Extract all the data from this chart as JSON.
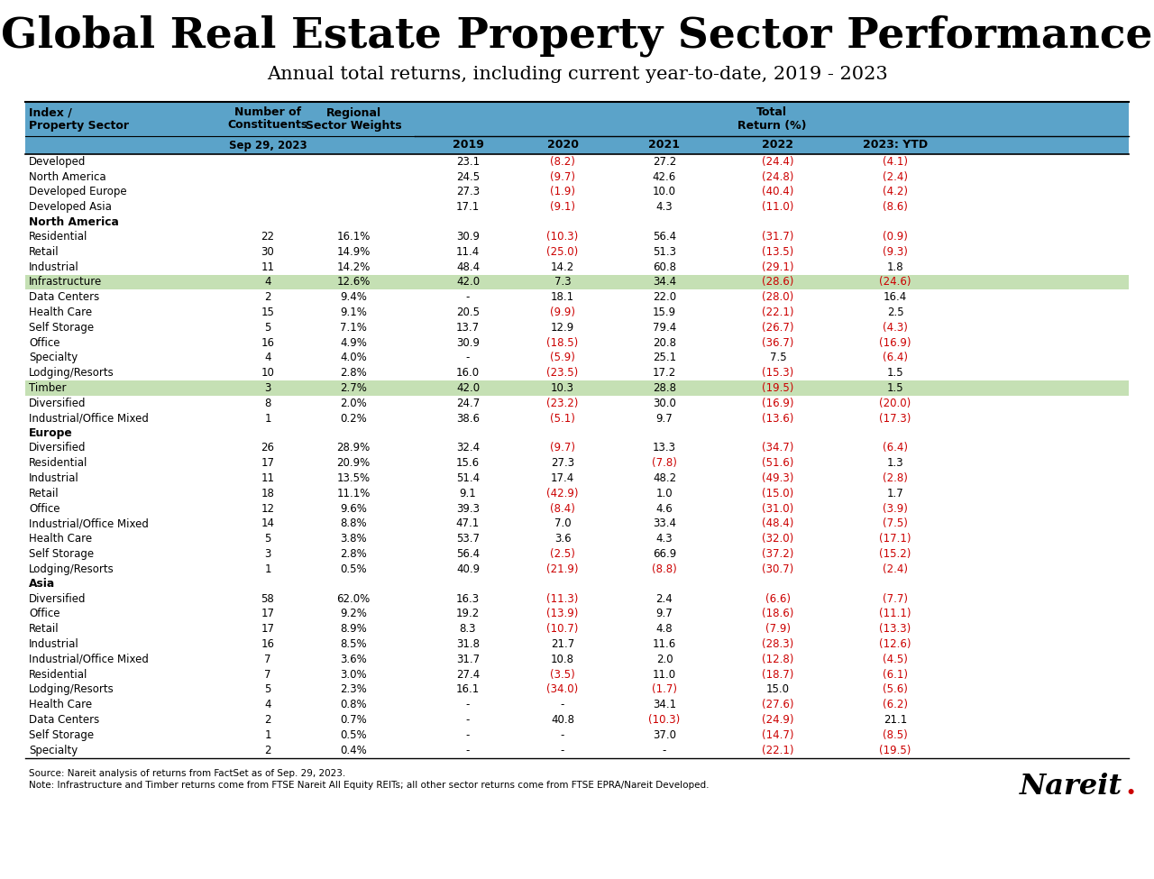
{
  "title": "Global Real Estate Property Sector Performance",
  "subtitle": "Annual total returns, including current year-to-date, 2019 - 2023",
  "header_bg": "#5BA3C9",
  "highlight_green": "#C5E0B4",
  "footnote1": "Source: Nareit analysis of returns from FactSet as of Sep. 29, 2023.",
  "footnote2": "Note: Infrastructure and Timber returns come from FTSE Nareit All Equity REITs; all other sector returns come from FTSE EPRA/Nareit Developed.",
  "rows": [
    {
      "section": "",
      "name": "Developed",
      "constituents": "",
      "weights": "",
      "y2019": "23.1",
      "y2020": "(8.2)",
      "y2021": "27.2",
      "y2022": "(24.4)",
      "y2023": "(4.1)",
      "neg2019": false,
      "neg2020": true,
      "neg2021": false,
      "neg2022": true,
      "neg2023": true,
      "highlight": false
    },
    {
      "section": "",
      "name": "North America",
      "constituents": "",
      "weights": "",
      "y2019": "24.5",
      "y2020": "(9.7)",
      "y2021": "42.6",
      "y2022": "(24.8)",
      "y2023": "(2.4)",
      "neg2019": false,
      "neg2020": true,
      "neg2021": false,
      "neg2022": true,
      "neg2023": true,
      "highlight": false
    },
    {
      "section": "",
      "name": "Developed Europe",
      "constituents": "",
      "weights": "",
      "y2019": "27.3",
      "y2020": "(1.9)",
      "y2021": "10.0",
      "y2022": "(40.4)",
      "y2023": "(4.2)",
      "neg2019": false,
      "neg2020": true,
      "neg2021": false,
      "neg2022": true,
      "neg2023": true,
      "highlight": false
    },
    {
      "section": "",
      "name": "Developed Asia",
      "constituents": "",
      "weights": "",
      "y2019": "17.1",
      "y2020": "(9.1)",
      "y2021": "4.3",
      "y2022": "(11.0)",
      "y2023": "(8.6)",
      "neg2019": false,
      "neg2020": true,
      "neg2021": false,
      "neg2022": true,
      "neg2023": true,
      "highlight": false
    },
    {
      "section": "North America",
      "name": "",
      "constituents": "",
      "weights": "",
      "y2019": "",
      "y2020": "",
      "y2021": "",
      "y2022": "",
      "y2023": "",
      "neg2019": false,
      "neg2020": false,
      "neg2021": false,
      "neg2022": false,
      "neg2023": false,
      "highlight": false
    },
    {
      "section": "",
      "name": "Residential",
      "constituents": "22",
      "weights": "16.1%",
      "y2019": "30.9",
      "y2020": "(10.3)",
      "y2021": "56.4",
      "y2022": "(31.7)",
      "y2023": "(0.9)",
      "neg2019": false,
      "neg2020": true,
      "neg2021": false,
      "neg2022": true,
      "neg2023": true,
      "highlight": false
    },
    {
      "section": "",
      "name": "Retail",
      "constituents": "30",
      "weights": "14.9%",
      "y2019": "11.4",
      "y2020": "(25.0)",
      "y2021": "51.3",
      "y2022": "(13.5)",
      "y2023": "(9.3)",
      "neg2019": false,
      "neg2020": true,
      "neg2021": false,
      "neg2022": true,
      "neg2023": true,
      "highlight": false
    },
    {
      "section": "",
      "name": "Industrial",
      "constituents": "11",
      "weights": "14.2%",
      "y2019": "48.4",
      "y2020": "14.2",
      "y2021": "60.8",
      "y2022": "(29.1)",
      "y2023": "1.8",
      "neg2019": false,
      "neg2020": false,
      "neg2021": false,
      "neg2022": true,
      "neg2023": false,
      "highlight": false
    },
    {
      "section": "",
      "name": "Infrastructure",
      "constituents": "4",
      "weights": "12.6%",
      "y2019": "42.0",
      "y2020": "7.3",
      "y2021": "34.4",
      "y2022": "(28.6)",
      "y2023": "(24.6)",
      "neg2019": false,
      "neg2020": false,
      "neg2021": false,
      "neg2022": true,
      "neg2023": true,
      "highlight": true
    },
    {
      "section": "",
      "name": "Data Centers",
      "constituents": "2",
      "weights": "9.4%",
      "y2019": "-",
      "y2020": "18.1",
      "y2021": "22.0",
      "y2022": "(28.0)",
      "y2023": "16.4",
      "neg2019": false,
      "neg2020": false,
      "neg2021": false,
      "neg2022": true,
      "neg2023": false,
      "highlight": false
    },
    {
      "section": "",
      "name": "Health Care",
      "constituents": "15",
      "weights": "9.1%",
      "y2019": "20.5",
      "y2020": "(9.9)",
      "y2021": "15.9",
      "y2022": "(22.1)",
      "y2023": "2.5",
      "neg2019": false,
      "neg2020": true,
      "neg2021": false,
      "neg2022": true,
      "neg2023": false,
      "highlight": false
    },
    {
      "section": "",
      "name": "Self Storage",
      "constituents": "5",
      "weights": "7.1%",
      "y2019": "13.7",
      "y2020": "12.9",
      "y2021": "79.4",
      "y2022": "(26.7)",
      "y2023": "(4.3)",
      "neg2019": false,
      "neg2020": false,
      "neg2021": false,
      "neg2022": true,
      "neg2023": true,
      "highlight": false
    },
    {
      "section": "",
      "name": "Office",
      "constituents": "16",
      "weights": "4.9%",
      "y2019": "30.9",
      "y2020": "(18.5)",
      "y2021": "20.8",
      "y2022": "(36.7)",
      "y2023": "(16.9)",
      "neg2019": false,
      "neg2020": true,
      "neg2021": false,
      "neg2022": true,
      "neg2023": true,
      "highlight": false
    },
    {
      "section": "",
      "name": "Specialty",
      "constituents": "4",
      "weights": "4.0%",
      "y2019": "-",
      "y2020": "(5.9)",
      "y2021": "25.1",
      "y2022": "7.5",
      "y2023": "(6.4)",
      "neg2019": false,
      "neg2020": true,
      "neg2021": false,
      "neg2022": false,
      "neg2023": true,
      "highlight": false
    },
    {
      "section": "",
      "name": "Lodging/Resorts",
      "constituents": "10",
      "weights": "2.8%",
      "y2019": "16.0",
      "y2020": "(23.5)",
      "y2021": "17.2",
      "y2022": "(15.3)",
      "y2023": "1.5",
      "neg2019": false,
      "neg2020": true,
      "neg2021": false,
      "neg2022": true,
      "neg2023": false,
      "highlight": false
    },
    {
      "section": "",
      "name": "Timber",
      "constituents": "3",
      "weights": "2.7%",
      "y2019": "42.0",
      "y2020": "10.3",
      "y2021": "28.8",
      "y2022": "(19.5)",
      "y2023": "1.5",
      "neg2019": false,
      "neg2020": false,
      "neg2021": false,
      "neg2022": true,
      "neg2023": false,
      "highlight": true
    },
    {
      "section": "",
      "name": "Diversified",
      "constituents": "8",
      "weights": "2.0%",
      "y2019": "24.7",
      "y2020": "(23.2)",
      "y2021": "30.0",
      "y2022": "(16.9)",
      "y2023": "(20.0)",
      "neg2019": false,
      "neg2020": true,
      "neg2021": false,
      "neg2022": true,
      "neg2023": true,
      "highlight": false
    },
    {
      "section": "",
      "name": "Industrial/Office Mixed",
      "constituents": "1",
      "weights": "0.2%",
      "y2019": "38.6",
      "y2020": "(5.1)",
      "y2021": "9.7",
      "y2022": "(13.6)",
      "y2023": "(17.3)",
      "neg2019": false,
      "neg2020": true,
      "neg2021": false,
      "neg2022": true,
      "neg2023": true,
      "highlight": false
    },
    {
      "section": "Europe",
      "name": "",
      "constituents": "",
      "weights": "",
      "y2019": "",
      "y2020": "",
      "y2021": "",
      "y2022": "",
      "y2023": "",
      "neg2019": false,
      "neg2020": false,
      "neg2021": false,
      "neg2022": false,
      "neg2023": false,
      "highlight": false
    },
    {
      "section": "",
      "name": "Diversified",
      "constituents": "26",
      "weights": "28.9%",
      "y2019": "32.4",
      "y2020": "(9.7)",
      "y2021": "13.3",
      "y2022": "(34.7)",
      "y2023": "(6.4)",
      "neg2019": false,
      "neg2020": true,
      "neg2021": false,
      "neg2022": true,
      "neg2023": true,
      "highlight": false
    },
    {
      "section": "",
      "name": "Residential",
      "constituents": "17",
      "weights": "20.9%",
      "y2019": "15.6",
      "y2020": "27.3",
      "y2021": "(7.8)",
      "y2022": "(51.6)",
      "y2023": "1.3",
      "neg2019": false,
      "neg2020": false,
      "neg2021": true,
      "neg2022": true,
      "neg2023": false,
      "highlight": false
    },
    {
      "section": "",
      "name": "Industrial",
      "constituents": "11",
      "weights": "13.5%",
      "y2019": "51.4",
      "y2020": "17.4",
      "y2021": "48.2",
      "y2022": "(49.3)",
      "y2023": "(2.8)",
      "neg2019": false,
      "neg2020": false,
      "neg2021": false,
      "neg2022": true,
      "neg2023": true,
      "highlight": false
    },
    {
      "section": "",
      "name": "Retail",
      "constituents": "18",
      "weights": "11.1%",
      "y2019": "9.1",
      "y2020": "(42.9)",
      "y2021": "1.0",
      "y2022": "(15.0)",
      "y2023": "1.7",
      "neg2019": false,
      "neg2020": true,
      "neg2021": false,
      "neg2022": true,
      "neg2023": false,
      "highlight": false
    },
    {
      "section": "",
      "name": "Office",
      "constituents": "12",
      "weights": "9.6%",
      "y2019": "39.3",
      "y2020": "(8.4)",
      "y2021": "4.6",
      "y2022": "(31.0)",
      "y2023": "(3.9)",
      "neg2019": false,
      "neg2020": true,
      "neg2021": false,
      "neg2022": true,
      "neg2023": true,
      "highlight": false
    },
    {
      "section": "",
      "name": "Industrial/Office Mixed",
      "constituents": "14",
      "weights": "8.8%",
      "y2019": "47.1",
      "y2020": "7.0",
      "y2021": "33.4",
      "y2022": "(48.4)",
      "y2023": "(7.5)",
      "neg2019": false,
      "neg2020": false,
      "neg2021": false,
      "neg2022": true,
      "neg2023": true,
      "highlight": false
    },
    {
      "section": "",
      "name": "Health Care",
      "constituents": "5",
      "weights": "3.8%",
      "y2019": "53.7",
      "y2020": "3.6",
      "y2021": "4.3",
      "y2022": "(32.0)",
      "y2023": "(17.1)",
      "neg2019": false,
      "neg2020": false,
      "neg2021": false,
      "neg2022": true,
      "neg2023": true,
      "highlight": false
    },
    {
      "section": "",
      "name": "Self Storage",
      "constituents": "3",
      "weights": "2.8%",
      "y2019": "56.4",
      "y2020": "(2.5)",
      "y2021": "66.9",
      "y2022": "(37.2)",
      "y2023": "(15.2)",
      "neg2019": false,
      "neg2020": true,
      "neg2021": false,
      "neg2022": true,
      "neg2023": true,
      "highlight": false
    },
    {
      "section": "",
      "name": "Lodging/Resorts",
      "constituents": "1",
      "weights": "0.5%",
      "y2019": "40.9",
      "y2020": "(21.9)",
      "y2021": "(8.8)",
      "y2022": "(30.7)",
      "y2023": "(2.4)",
      "neg2019": false,
      "neg2020": true,
      "neg2021": true,
      "neg2022": true,
      "neg2023": true,
      "highlight": false
    },
    {
      "section": "Asia",
      "name": "",
      "constituents": "",
      "weights": "",
      "y2019": "",
      "y2020": "",
      "y2021": "",
      "y2022": "",
      "y2023": "",
      "neg2019": false,
      "neg2020": false,
      "neg2021": false,
      "neg2022": false,
      "neg2023": false,
      "highlight": false
    },
    {
      "section": "",
      "name": "Diversified",
      "constituents": "58",
      "weights": "62.0%",
      "y2019": "16.3",
      "y2020": "(11.3)",
      "y2021": "2.4",
      "y2022": "(6.6)",
      "y2023": "(7.7)",
      "neg2019": false,
      "neg2020": true,
      "neg2021": false,
      "neg2022": true,
      "neg2023": true,
      "highlight": false
    },
    {
      "section": "",
      "name": "Office",
      "constituents": "17",
      "weights": "9.2%",
      "y2019": "19.2",
      "y2020": "(13.9)",
      "y2021": "9.7",
      "y2022": "(18.6)",
      "y2023": "(11.1)",
      "neg2019": false,
      "neg2020": true,
      "neg2021": false,
      "neg2022": true,
      "neg2023": true,
      "highlight": false
    },
    {
      "section": "",
      "name": "Retail",
      "constituents": "17",
      "weights": "8.9%",
      "y2019": "8.3",
      "y2020": "(10.7)",
      "y2021": "4.8",
      "y2022": "(7.9)",
      "y2023": "(13.3)",
      "neg2019": false,
      "neg2020": true,
      "neg2021": false,
      "neg2022": true,
      "neg2023": true,
      "highlight": false
    },
    {
      "section": "",
      "name": "Industrial",
      "constituents": "16",
      "weights": "8.5%",
      "y2019": "31.8",
      "y2020": "21.7",
      "y2021": "11.6",
      "y2022": "(28.3)",
      "y2023": "(12.6)",
      "neg2019": false,
      "neg2020": false,
      "neg2021": false,
      "neg2022": true,
      "neg2023": true,
      "highlight": false
    },
    {
      "section": "",
      "name": "Industrial/Office Mixed",
      "constituents": "7",
      "weights": "3.6%",
      "y2019": "31.7",
      "y2020": "10.8",
      "y2021": "2.0",
      "y2022": "(12.8)",
      "y2023": "(4.5)",
      "neg2019": false,
      "neg2020": false,
      "neg2021": false,
      "neg2022": true,
      "neg2023": true,
      "highlight": false
    },
    {
      "section": "",
      "name": "Residential",
      "constituents": "7",
      "weights": "3.0%",
      "y2019": "27.4",
      "y2020": "(3.5)",
      "y2021": "11.0",
      "y2022": "(18.7)",
      "y2023": "(6.1)",
      "neg2019": false,
      "neg2020": true,
      "neg2021": false,
      "neg2022": true,
      "neg2023": true,
      "highlight": false
    },
    {
      "section": "",
      "name": "Lodging/Resorts",
      "constituents": "5",
      "weights": "2.3%",
      "y2019": "16.1",
      "y2020": "(34.0)",
      "y2021": "(1.7)",
      "y2022": "15.0",
      "y2023": "(5.6)",
      "neg2019": false,
      "neg2020": true,
      "neg2021": true,
      "neg2022": false,
      "neg2023": true,
      "highlight": false
    },
    {
      "section": "",
      "name": "Health Care",
      "constituents": "4",
      "weights": "0.8%",
      "y2019": "-",
      "y2020": "-",
      "y2021": "34.1",
      "y2022": "(27.6)",
      "y2023": "(6.2)",
      "neg2019": false,
      "neg2020": false,
      "neg2021": false,
      "neg2022": true,
      "neg2023": true,
      "highlight": false
    },
    {
      "section": "",
      "name": "Data Centers",
      "constituents": "2",
      "weights": "0.7%",
      "y2019": "-",
      "y2020": "40.8",
      "y2021": "(10.3)",
      "y2022": "(24.9)",
      "y2023": "21.1",
      "neg2019": false,
      "neg2020": false,
      "neg2021": true,
      "neg2022": true,
      "neg2023": false,
      "highlight": false
    },
    {
      "section": "",
      "name": "Self Storage",
      "constituents": "1",
      "weights": "0.5%",
      "y2019": "-",
      "y2020": "-",
      "y2021": "37.0",
      "y2022": "(14.7)",
      "y2023": "(8.5)",
      "neg2019": false,
      "neg2020": false,
      "neg2021": false,
      "neg2022": true,
      "neg2023": true,
      "highlight": false
    },
    {
      "section": "",
      "name": "Specialty",
      "constituents": "2",
      "weights": "0.4%",
      "y2019": "-",
      "y2020": "-",
      "y2021": "-",
      "y2022": "(22.1)",
      "y2023": "(19.5)",
      "neg2019": false,
      "neg2020": false,
      "neg2021": false,
      "neg2022": true,
      "neg2023": true,
      "highlight": false
    }
  ]
}
